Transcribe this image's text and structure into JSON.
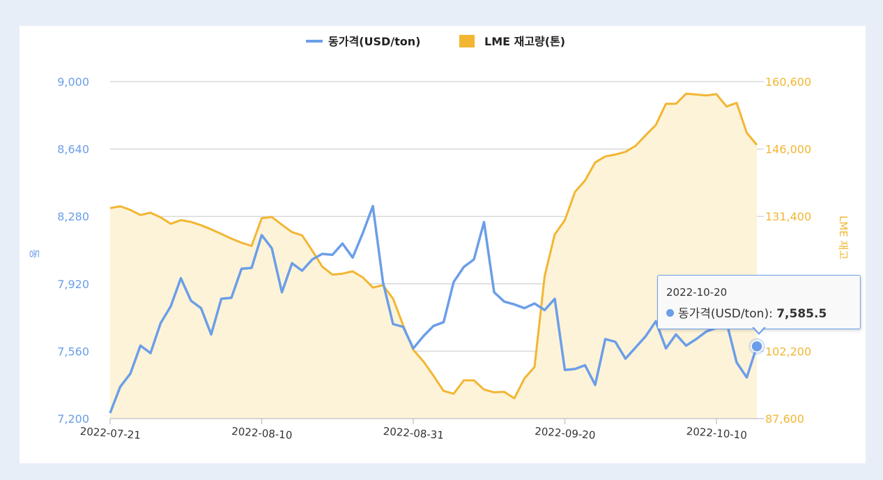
{
  "legend": {
    "series1": "동가격(USD/ton)",
    "series2": "LME 재고량(톤)"
  },
  "colors": {
    "price": "#6b9ee8",
    "stock_line": "#f2b632",
    "stock_fill": "#fdf3d8",
    "grid": "#d8d8d8"
  },
  "tooltip": {
    "date": "2022-10-20",
    "label": "동가격(USD/ton)",
    "sep": ": ",
    "value": "7,585.5"
  },
  "chart_data": {
    "type": "line",
    "title": "",
    "xlabel": "",
    "ylabel_left": "동",
    "ylabel_right": "LME 재고",
    "x_ticks": [
      "2022-07-21",
      "2022-08-10",
      "2022-08-31",
      "2022-09-20",
      "2022-10-10"
    ],
    "y_left": {
      "ticks": [
        "7,200",
        "7,560",
        "7,920",
        "8,280",
        "8,640",
        "9,000"
      ],
      "range": [
        7200,
        9000
      ]
    },
    "y_right": {
      "ticks": [
        "87,600",
        "102,200",
        "116,800",
        "131,400",
        "146,000",
        "160,600"
      ],
      "range": [
        87600,
        160600
      ]
    },
    "grid": true,
    "legend_position": "top-center",
    "highlight_index": 65,
    "series": [
      {
        "name": "동가격(USD/ton)",
        "axis": "left",
        "type": "line",
        "values": [
          7230,
          7370,
          7440,
          7590,
          7550,
          7710,
          7800,
          7950,
          7830,
          7790,
          7650,
          7840,
          7845,
          8000,
          8005,
          8180,
          8110,
          7875,
          8030,
          7990,
          8050,
          8080,
          8075,
          8135,
          8060,
          8190,
          8335,
          7930,
          7705,
          7690,
          7575,
          7640,
          7695,
          7715,
          7930,
          8010,
          8050,
          8250,
          7875,
          7825,
          7810,
          7790,
          7815,
          7780,
          7840,
          7460,
          7465,
          7485,
          7380,
          7625,
          7610,
          7520,
          7580,
          7640,
          7720,
          7575,
          7650,
          7590,
          7625,
          7665,
          7685,
          7715,
          7500,
          7420,
          7586
        ]
      },
      {
        "name": "LME 재고량(톤)",
        "axis": "right",
        "type": "area",
        "values": [
          133200,
          133600,
          132800,
          131700,
          132200,
          131200,
          129800,
          130600,
          130200,
          129500,
          128600,
          127600,
          126600,
          125700,
          125000,
          131000,
          131300,
          129600,
          128000,
          127300,
          124000,
          120500,
          118800,
          119000,
          119500,
          118200,
          116000,
          116500,
          113600,
          107800,
          102500,
          100000,
          96900,
          93600,
          93000,
          95900,
          95900,
          93900,
          93300,
          93400,
          92000,
          96300,
          98800,
          118500,
          127500,
          130600,
          136700,
          139200,
          143100,
          144400,
          144800,
          145400,
          146700,
          149000,
          151200,
          155800,
          155800,
          158000,
          157800,
          157600,
          157900,
          155200,
          156000,
          149500,
          146900
        ]
      }
    ]
  }
}
